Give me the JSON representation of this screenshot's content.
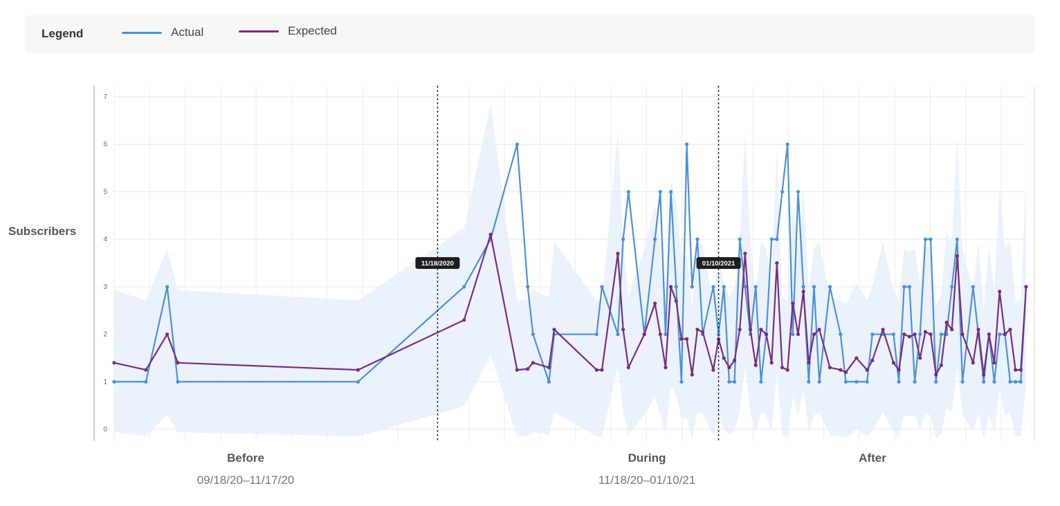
{
  "legend": {
    "title": "Legend",
    "items": [
      {
        "label": "Actual",
        "color": "#4a90d9"
      },
      {
        "label": "Expected",
        "color": "#7b2a7e"
      }
    ]
  },
  "chart_data": {
    "type": "line",
    "ylabel": "Subscribers",
    "ylim": [
      0,
      7
    ],
    "yticks": [
      "0",
      "1",
      "2",
      "3",
      "4",
      "5",
      "6",
      "7"
    ],
    "grid": true,
    "legend_position": "top",
    "periods": [
      {
        "name": "Before",
        "range": "09/18/20–11/17/20"
      },
      {
        "name": "During",
        "range": "11/18/20–01/10/21"
      },
      {
        "name": "After",
        "range": ""
      }
    ],
    "markers": [
      {
        "label": "11/18/2020",
        "x": 61
      },
      {
        "label": "01/10/2021",
        "x": 114
      }
    ],
    "series": [
      {
        "name": "Actual",
        "color": "#4a90d9",
        "points": [
          [
            0,
            1
          ],
          [
            6,
            1
          ],
          [
            10,
            3
          ],
          [
            12,
            1
          ],
          [
            46,
            1
          ],
          [
            66,
            3
          ],
          [
            71,
            4
          ],
          [
            76,
            6
          ],
          [
            78,
            3
          ],
          [
            79,
            2
          ],
          [
            82,
            1
          ],
          [
            83,
            2
          ],
          [
            91,
            2
          ],
          [
            92,
            3
          ],
          [
            95,
            2
          ],
          [
            96,
            4
          ],
          [
            97,
            5
          ],
          [
            100,
            2
          ],
          [
            102,
            4
          ],
          [
            103,
            5
          ],
          [
            104,
            2
          ],
          [
            105,
            5
          ],
          [
            106,
            3
          ],
          [
            107,
            1
          ],
          [
            108,
            6
          ],
          [
            109,
            3
          ],
          [
            110,
            4
          ],
          [
            111,
            2
          ],
          [
            113,
            3
          ],
          [
            114,
            2
          ],
          [
            115,
            3
          ],
          [
            116,
            1
          ],
          [
            117,
            1
          ],
          [
            118,
            4
          ],
          [
            119,
            3
          ],
          [
            120,
            2
          ],
          [
            121,
            3
          ],
          [
            122,
            1
          ],
          [
            123,
            2
          ],
          [
            124,
            4
          ],
          [
            125,
            4
          ],
          [
            126,
            5
          ],
          [
            127,
            6
          ],
          [
            128,
            2
          ],
          [
            129,
            5
          ],
          [
            130,
            3
          ],
          [
            131,
            1
          ],
          [
            132,
            3
          ],
          [
            133,
            1
          ],
          [
            135,
            3
          ],
          [
            137,
            2
          ],
          [
            138,
            1
          ],
          [
            140,
            1
          ],
          [
            142,
            1
          ],
          [
            143,
            2
          ],
          [
            145,
            2
          ],
          [
            147,
            2
          ],
          [
            148,
            1
          ],
          [
            149,
            3
          ],
          [
            150,
            3
          ],
          [
            151,
            1
          ],
          [
            152,
            2
          ],
          [
            153,
            4
          ],
          [
            154,
            4
          ],
          [
            155,
            1
          ],
          [
            156,
            2
          ],
          [
            157,
            2
          ],
          [
            158,
            3
          ],
          [
            159,
            4
          ],
          [
            160,
            1
          ],
          [
            162,
            3
          ],
          [
            163,
            2
          ],
          [
            164,
            1
          ],
          [
            165,
            2
          ],
          [
            166,
            1
          ],
          [
            167,
            2
          ],
          [
            168,
            2
          ],
          [
            169,
            1
          ],
          [
            170,
            1
          ],
          [
            171,
            1
          ],
          [
            172,
            3
          ]
        ]
      },
      {
        "name": "Expected",
        "color": "#7b2a7e",
        "points": [
          [
            0,
            1.4
          ],
          [
            6,
            1.25
          ],
          [
            10,
            2
          ],
          [
            12,
            1.4
          ],
          [
            46,
            1.25
          ],
          [
            66,
            2.3
          ],
          [
            71,
            4.1
          ],
          [
            76,
            1.25
          ],
          [
            78,
            1.27
          ],
          [
            79,
            1.4
          ],
          [
            82,
            1.3
          ],
          [
            83,
            2.1
          ],
          [
            91,
            1.25
          ],
          [
            92,
            1.25
          ],
          [
            95,
            3.7
          ],
          [
            96,
            2.1
          ],
          [
            97,
            1.3
          ],
          [
            100,
            2
          ],
          [
            102,
            2.65
          ],
          [
            103,
            2
          ],
          [
            104,
            1.3
          ],
          [
            105,
            3
          ],
          [
            106,
            2.7
          ],
          [
            107,
            1.9
          ],
          [
            108,
            1.9
          ],
          [
            109,
            1.15
          ],
          [
            110,
            2.1
          ],
          [
            111,
            2.05
          ],
          [
            113,
            1.25
          ],
          [
            114,
            1.9
          ],
          [
            115,
            1.5
          ],
          [
            116,
            1.3
          ],
          [
            117,
            1.45
          ],
          [
            118,
            2.1
          ],
          [
            119,
            3.7
          ],
          [
            120,
            2.1
          ],
          [
            121,
            1.35
          ],
          [
            122,
            2.1
          ],
          [
            123,
            2
          ],
          [
            124,
            1.4
          ],
          [
            125,
            3.5
          ],
          [
            126,
            1.3
          ],
          [
            127,
            1.25
          ],
          [
            128,
            2.65
          ],
          [
            129,
            2
          ],
          [
            130,
            2.9
          ],
          [
            131,
            1.4
          ],
          [
            132,
            2
          ],
          [
            133,
            2.1
          ],
          [
            135,
            1.3
          ],
          [
            137,
            1.25
          ],
          [
            138,
            1.2
          ],
          [
            140,
            1.5
          ],
          [
            142,
            1.25
          ],
          [
            143,
            1.45
          ],
          [
            145,
            2.1
          ],
          [
            147,
            1.4
          ],
          [
            148,
            1.25
          ],
          [
            149,
            2
          ],
          [
            150,
            1.95
          ],
          [
            151,
            2
          ],
          [
            152,
            1.5
          ],
          [
            153,
            2.05
          ],
          [
            154,
            2
          ],
          [
            155,
            1.15
          ],
          [
            156,
            1.35
          ],
          [
            157,
            2.25
          ],
          [
            158,
            2.1
          ],
          [
            159,
            3.65
          ],
          [
            160,
            2
          ],
          [
            162,
            1.4
          ],
          [
            163,
            2.1
          ],
          [
            164,
            1.15
          ],
          [
            165,
            2
          ],
          [
            166,
            1.4
          ],
          [
            167,
            2.9
          ],
          [
            168,
            2
          ],
          [
            169,
            2.1
          ],
          [
            170,
            1.25
          ],
          [
            171,
            1.25
          ],
          [
            172,
            3
          ]
        ]
      }
    ]
  }
}
